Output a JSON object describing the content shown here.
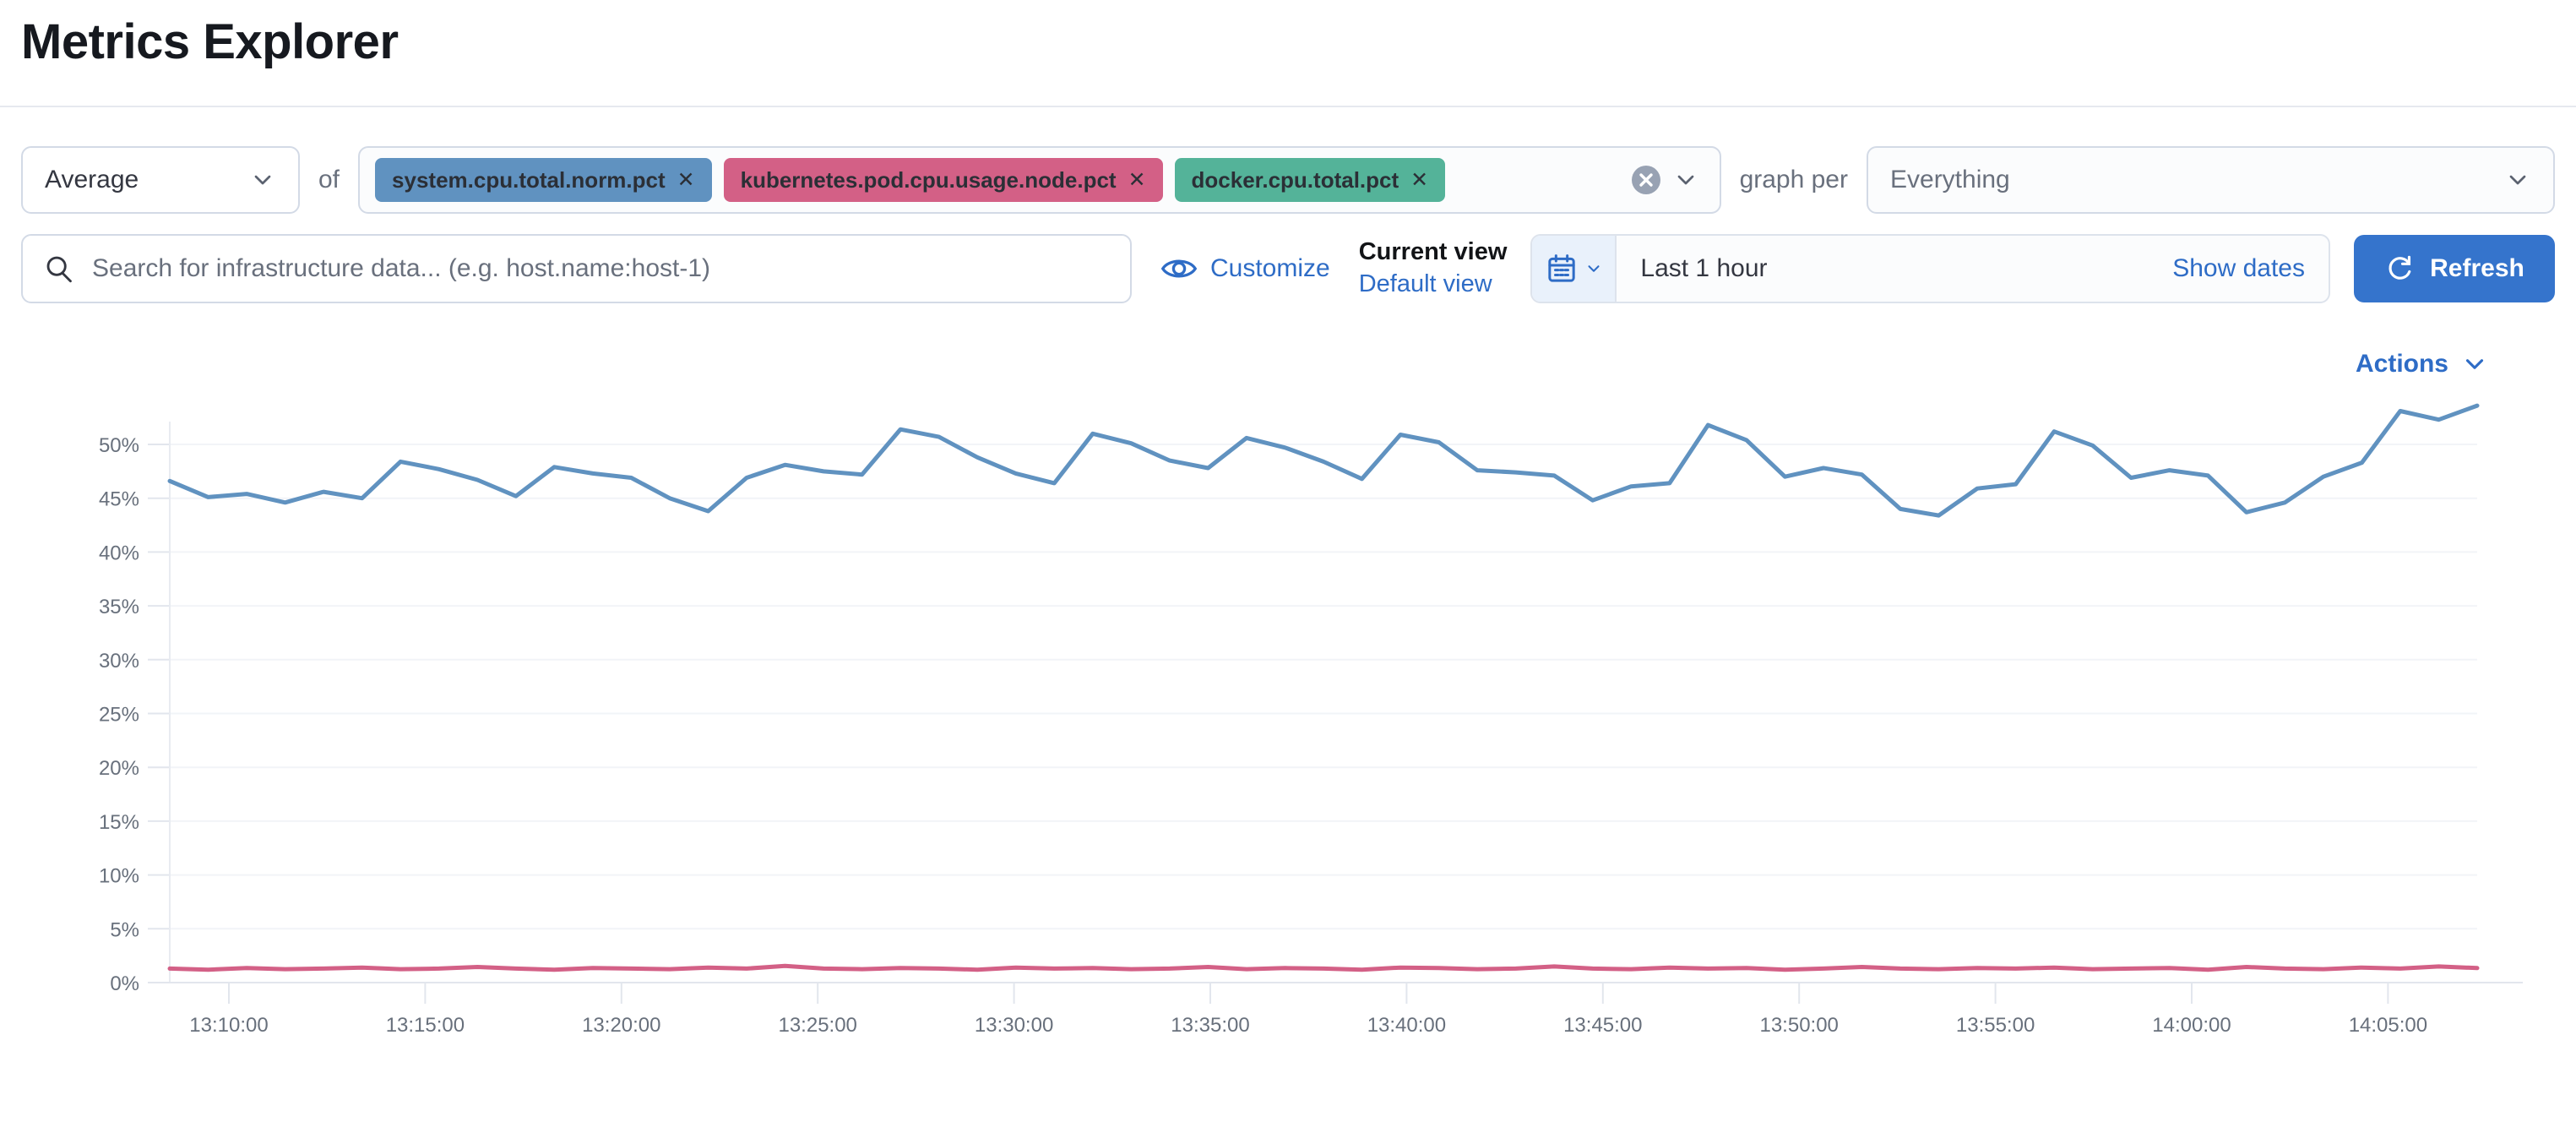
{
  "header": {
    "title": "Metrics Explorer"
  },
  "toolbar": {
    "aggregation": {
      "value": "Average"
    },
    "of_label": "of",
    "metrics": {
      "pills": [
        {
          "label": "system.cpu.total.norm.pct",
          "color": "#6092C0"
        },
        {
          "label": "kubernetes.pod.cpu.usage.node.pct",
          "color": "#D36086"
        },
        {
          "label": "docker.cpu.total.pct",
          "color": "#54B399"
        }
      ],
      "remove_glyph": "✕"
    },
    "graph_per_label": "graph per",
    "group_by": {
      "value": "Everything"
    }
  },
  "filter_bar": {
    "search": {
      "value": "",
      "placeholder": "Search for infrastructure data... (e.g. host.name:host-1)"
    },
    "customize_label": "Customize",
    "view_status": {
      "current": "Current view",
      "default_link": "Default view"
    },
    "date_picker": {
      "value": "Last 1 hour",
      "show_dates_label": "Show dates"
    },
    "refresh_label": "Refresh"
  },
  "chart_actions_label": "Actions",
  "colors": {
    "link_blue": "#2e6cc6",
    "refresh_button": "#3574cc",
    "series_blue": "#6092C0",
    "series_pink": "#D36086",
    "pill_green": "#54B399",
    "axis_text": "#68707c"
  },
  "chart_data": {
    "type": "line",
    "title": "",
    "xlabel": "",
    "ylabel": "",
    "unit": "%",
    "grid": true,
    "legend_position": "none",
    "ylim": [
      0,
      55
    ],
    "y_ticks": [
      0,
      5,
      10,
      15,
      20,
      25,
      30,
      35,
      40,
      45,
      50
    ],
    "y_tick_labels": [
      "0%",
      "5%",
      "10%",
      "15%",
      "20%",
      "25%",
      "30%",
      "35%",
      "40%",
      "45%",
      "50%"
    ],
    "x_tick_labels": [
      "13:10:00",
      "13:15:00",
      "13:20:00",
      "13:25:00",
      "13:30:00",
      "13:35:00",
      "13:40:00",
      "13:45:00",
      "13:50:00",
      "13:55:00",
      "14:00:00",
      "14:05:00"
    ],
    "x_range": [
      "13:08:30",
      "14:07:30"
    ],
    "series": [
      {
        "name": "system.cpu.total.norm.pct (Average)",
        "color": "#6092C0",
        "values": [
          46.6,
          45.1,
          45.4,
          44.6,
          45.6,
          45.0,
          48.4,
          47.7,
          46.7,
          45.2,
          47.9,
          47.3,
          46.9,
          45.0,
          43.8,
          46.9,
          48.1,
          47.5,
          47.2,
          51.4,
          50.7,
          48.8,
          47.3,
          46.4,
          51.0,
          50.1,
          48.5,
          47.8,
          50.6,
          49.7,
          48.4,
          46.8,
          50.9,
          50.2,
          47.6,
          47.4,
          47.1,
          44.8,
          46.1,
          46.4,
          51.8,
          50.4,
          47.0,
          47.8,
          47.2,
          44.0,
          43.4,
          45.9,
          46.3,
          51.2,
          49.9,
          46.9,
          47.6,
          47.1,
          43.7,
          44.6,
          47.0,
          48.3,
          53.1,
          52.3,
          53.6
        ]
      },
      {
        "name": "kubernetes.pod.cpu.usage.node.pct (Average)",
        "color": "#D36086",
        "values": [
          1.3,
          1.2,
          1.35,
          1.25,
          1.3,
          1.4,
          1.25,
          1.3,
          1.45,
          1.3,
          1.2,
          1.35,
          1.3,
          1.25,
          1.4,
          1.3,
          1.55,
          1.3,
          1.25,
          1.35,
          1.3,
          1.2,
          1.4,
          1.3,
          1.35,
          1.25,
          1.3,
          1.45,
          1.25,
          1.35,
          1.3,
          1.2,
          1.4,
          1.35,
          1.25,
          1.3,
          1.5,
          1.3,
          1.25,
          1.4,
          1.3,
          1.35,
          1.2,
          1.3,
          1.45,
          1.3,
          1.25,
          1.35,
          1.3,
          1.4,
          1.25,
          1.3,
          1.35,
          1.2,
          1.45,
          1.3,
          1.25,
          1.4,
          1.3,
          1.5,
          1.35
        ]
      }
    ]
  }
}
